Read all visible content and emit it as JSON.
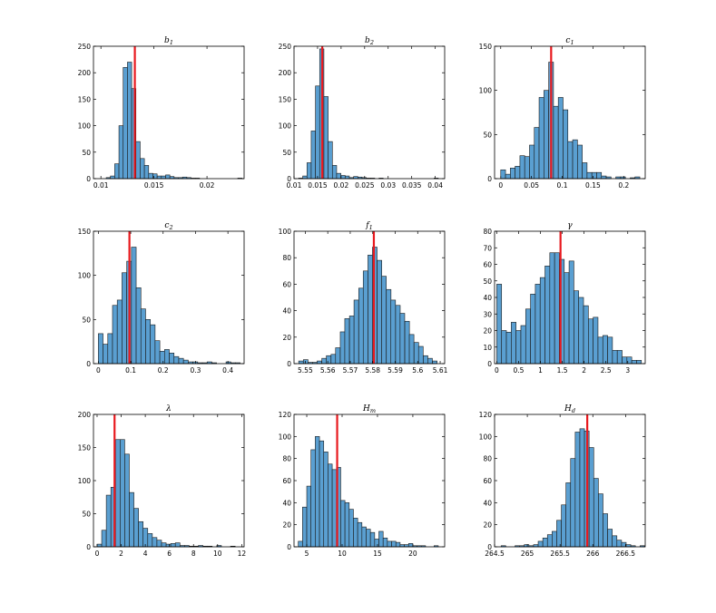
{
  "colors": {
    "bar_fill": "#5a9fd1",
    "bar_stroke": "#1a1a1a",
    "marker": "#e8191e",
    "axis": "#000000"
  },
  "chart_data": [
    {
      "type": "bar",
      "title": "b₁",
      "xlim": [
        0.0093,
        0.0235
      ],
      "ylim": [
        0,
        250
      ],
      "xticks": [
        0.01,
        0.015,
        0.02
      ],
      "xtick_labels": [
        "0.01",
        "0.015",
        "0.02"
      ],
      "yticks": [
        0,
        50,
        100,
        150,
        200,
        250
      ],
      "ytick_labels": [
        "0",
        "50",
        "100",
        "150",
        "200",
        "250"
      ],
      "bin_width": 0.0004,
      "bin_centers": [
        0.0107,
        0.0111,
        0.0115,
        0.0119,
        0.0123,
        0.0127,
        0.0131,
        0.0135,
        0.0139,
        0.0143,
        0.0147,
        0.0151,
        0.0155,
        0.0159,
        0.0163,
        0.0167,
        0.0171,
        0.0175,
        0.0179,
        0.0183,
        0.0187,
        0.0191,
        0.0195,
        0.0199,
        0.0203,
        0.0207,
        0.0211,
        0.0215,
        0.0219,
        0.0223,
        0.0227,
        0.0231
      ],
      "values": [
        2,
        5,
        28,
        100,
        210,
        220,
        170,
        70,
        38,
        25,
        10,
        9,
        5,
        5,
        7,
        4,
        2,
        2,
        3,
        2,
        1,
        1,
        0,
        0,
        0,
        0,
        0,
        0,
        0,
        0,
        0,
        1
      ],
      "marker_x": 0.0132
    },
    {
      "type": "bar",
      "title": "b₂",
      "xlim": [
        0.01,
        0.042
      ],
      "ylim": [
        0,
        250
      ],
      "xticks": [
        0.01,
        0.015,
        0.02,
        0.025,
        0.03,
        0.035,
        0.04
      ],
      "xtick_labels": [
        "0.01",
        "0.015",
        "0.02",
        "0.025",
        "0.03",
        "0.035",
        "0.04"
      ],
      "yticks": [
        0,
        50,
        100,
        150,
        200,
        250
      ],
      "ytick_labels": [
        "0",
        "50",
        "100",
        "150",
        "200",
        "250"
      ],
      "bin_width": 0.0009,
      "bin_centers": [
        0.0114,
        0.0123,
        0.0132,
        0.0141,
        0.015,
        0.0159,
        0.0168,
        0.0177,
        0.0186,
        0.0195,
        0.0204,
        0.0213,
        0.0222,
        0.0231,
        0.024,
        0.0249,
        0.0258,
        0.0267,
        0.0276,
        0.0285,
        0.0294,
        0.0303,
        0.0312,
        0.0321,
        0.033,
        0.0339,
        0.0348,
        0.0357,
        0.0366,
        0.0375,
        0.0384,
        0.0393,
        0.0402
      ],
      "values": [
        1,
        5,
        30,
        90,
        175,
        245,
        155,
        70,
        25,
        10,
        6,
        5,
        2,
        4,
        3,
        2,
        1,
        1,
        0,
        1,
        0,
        0,
        0,
        0,
        0,
        0,
        0,
        0,
        0,
        0,
        0,
        0,
        1
      ],
      "marker_x": 0.016
    },
    {
      "type": "bar",
      "title": "c₁",
      "xlim": [
        -0.01,
        0.235
      ],
      "ylim": [
        0,
        150
      ],
      "xticks": [
        0,
        0.05,
        0.1,
        0.15,
        0.2
      ],
      "xtick_labels": [
        "0",
        "0.05",
        "0.1",
        "0.15",
        "0.2"
      ],
      "yticks": [
        0,
        50,
        100,
        150
      ],
      "ytick_labels": [
        "0",
        "50",
        "100",
        "150"
      ],
      "bin_width": 0.0078,
      "bin_centers": [
        0.0039,
        0.0117,
        0.0195,
        0.0273,
        0.0351,
        0.0429,
        0.0507,
        0.0585,
        0.0663,
        0.0741,
        0.0819,
        0.0897,
        0.0975,
        0.1053,
        0.1131,
        0.1209,
        0.1287,
        0.1365,
        0.1443,
        0.1521,
        0.1599,
        0.1677,
        0.1755,
        0.1833,
        0.1911,
        0.1989,
        0.2067,
        0.2145,
        0.2223
      ],
      "values": [
        10,
        5,
        12,
        14,
        26,
        25,
        38,
        58,
        92,
        100,
        132,
        82,
        92,
        78,
        42,
        44,
        38,
        18,
        7,
        7,
        7,
        3,
        2,
        0,
        2,
        2,
        0,
        1,
        2
      ],
      "marker_x": 0.082
    },
    {
      "type": "bar",
      "title": "c₂",
      "xlim": [
        -0.015,
        0.45
      ],
      "ylim": [
        0,
        150
      ],
      "xticks": [
        0,
        0.1,
        0.2,
        0.3,
        0.4
      ],
      "xtick_labels": [
        "0",
        "0.1",
        "0.2",
        "0.3",
        "0.4"
      ],
      "yticks": [
        0,
        50,
        100,
        150
      ],
      "ytick_labels": [
        "0",
        "50",
        "100",
        "150"
      ],
      "bin_width": 0.0146,
      "bin_centers": [
        0.0073,
        0.0219,
        0.0365,
        0.0511,
        0.0657,
        0.0803,
        0.0949,
        0.1095,
        0.1241,
        0.1387,
        0.1533,
        0.1679,
        0.1825,
        0.1971,
        0.2117,
        0.2263,
        0.2409,
        0.2555,
        0.2701,
        0.2847,
        0.2993,
        0.3139,
        0.3285,
        0.3431,
        0.3577,
        0.3723,
        0.3869,
        0.4015,
        0.4161,
        0.4307
      ],
      "values": [
        34,
        22,
        34,
        66,
        72,
        103,
        116,
        132,
        86,
        62,
        50,
        44,
        26,
        14,
        16,
        12,
        8,
        6,
        4,
        2,
        2,
        1,
        1,
        2,
        1,
        0,
        0,
        2,
        1,
        1
      ],
      "marker_x": 0.096
    },
    {
      "type": "bar",
      "title": "f₁",
      "xlim": [
        5.545,
        5.612
      ],
      "ylim": [
        0,
        100
      ],
      "xticks": [
        5.55,
        5.56,
        5.57,
        5.58,
        5.59,
        5.6,
        5.61
      ],
      "xtick_labels": [
        "5.55",
        "5.56",
        "5.57",
        "5.58",
        "5.59",
        "5.6",
        "5.61"
      ],
      "yticks": [
        0,
        20,
        40,
        60,
        80,
        100
      ],
      "ytick_labels": [
        "0",
        "20",
        "40",
        "60",
        "80",
        "100"
      ],
      "bin_width": 0.00205,
      "bin_centers": [
        5.5481,
        5.5502,
        5.5522,
        5.5543,
        5.5563,
        5.5584,
        5.5604,
        5.5625,
        5.5645,
        5.5666,
        5.5686,
        5.5707,
        5.5727,
        5.5748,
        5.5768,
        5.5789,
        5.5809,
        5.583,
        5.585,
        5.5871,
        5.5891,
        5.5912,
        5.5932,
        5.5953,
        5.5973,
        5.5994,
        5.6014,
        5.6035,
        5.6055,
        5.6076
      ],
      "values": [
        2,
        3,
        1,
        1,
        2,
        4,
        6,
        7,
        12,
        24,
        34,
        36,
        48,
        57,
        70,
        82,
        88,
        78,
        66,
        56,
        48,
        44,
        38,
        32,
        22,
        16,
        13,
        6,
        4,
        2
      ],
      "marker_x": 5.5805
    },
    {
      "type": "bar",
      "title": "γ",
      "xlim": [
        -0.05,
        3.4
      ],
      "ylim": [
        0,
        80
      ],
      "xticks": [
        0,
        0.5,
        1,
        1.5,
        2,
        2.5,
        3
      ],
      "xtick_labels": [
        "0",
        "0.5",
        "1",
        "1.5",
        "2",
        "2.5",
        "3"
      ],
      "yticks": [
        0,
        10,
        20,
        30,
        40,
        50,
        60,
        70,
        80
      ],
      "ytick_labels": [
        "0",
        "10",
        "20",
        "30",
        "40",
        "50",
        "60",
        "70",
        "80"
      ],
      "bin_width": 0.1104,
      "bin_centers": [
        0.0552,
        0.1656,
        0.276,
        0.3864,
        0.4968,
        0.6072,
        0.7176,
        0.828,
        0.9384,
        1.0488,
        1.1592,
        1.2696,
        1.38,
        1.4904,
        1.6008,
        1.7112,
        1.8216,
        1.932,
        2.0424,
        2.1528,
        2.2632,
        2.3736,
        2.484,
        2.5944,
        2.7048,
        2.8152,
        2.9256,
        3.036,
        3.1464,
        3.2568
      ],
      "values": [
        48,
        20,
        19,
        25,
        20,
        23,
        33,
        42,
        48,
        52,
        59,
        67,
        67,
        63,
        55,
        62,
        44,
        40,
        35,
        27,
        28,
        16,
        17,
        16,
        8,
        8,
        4,
        4,
        2,
        2
      ],
      "marker_x": 1.46
    },
    {
      "type": "bar",
      "title": "λ",
      "xlim": [
        -0.3,
        12.2
      ],
      "ylim": [
        0,
        200
      ],
      "xticks": [
        0,
        2,
        4,
        6,
        8,
        10,
        12
      ],
      "xtick_labels": [
        "0",
        "2",
        "4",
        "6",
        "8",
        "10",
        "12"
      ],
      "yticks": [
        0,
        50,
        100,
        150,
        200
      ],
      "ytick_labels": [
        "0",
        "50",
        "100",
        "150",
        "200"
      ],
      "bin_width": 0.382,
      "bin_centers": [
        0.191,
        0.573,
        0.955,
        1.337,
        1.719,
        2.101,
        2.483,
        2.865,
        3.247,
        3.629,
        4.011,
        4.393,
        4.775,
        5.157,
        5.539,
        5.921,
        6.303,
        6.685,
        7.067,
        7.449,
        7.831,
        8.213,
        8.595,
        8.977,
        9.359,
        9.741,
        10.123,
        10.505,
        10.887,
        11.269
      ],
      "values": [
        4,
        25,
        78,
        90,
        162,
        162,
        140,
        82,
        58,
        38,
        28,
        20,
        14,
        10,
        6,
        4,
        5,
        6,
        2,
        2,
        1,
        1,
        2,
        1,
        1,
        0,
        2,
        0,
        0,
        1
      ],
      "marker_x": 1.45
    },
    {
      "type": "bar",
      "title": "Hₘ",
      "xlim": [
        3.2,
        24.5
      ],
      "ylim": [
        0,
        120
      ],
      "xticks": [
        5,
        10,
        15,
        20
      ],
      "xtick_labels": [
        "5",
        "10",
        "15",
        "20"
      ],
      "yticks": [
        0,
        20,
        40,
        60,
        80,
        100,
        120
      ],
      "ytick_labels": [
        "0",
        "20",
        "40",
        "60",
        "80",
        "100",
        "120"
      ],
      "bin_width": 0.6,
      "bin_centers": [
        4.1,
        4.7,
        5.3,
        5.9,
        6.5,
        7.1,
        7.7,
        8.3,
        8.9,
        9.5,
        10.1,
        10.7,
        11.3,
        11.9,
        12.5,
        13.1,
        13.7,
        14.3,
        14.9,
        15.5,
        16.1,
        16.7,
        17.3,
        17.9,
        18.5,
        19.1,
        19.7,
        20.3,
        20.9,
        21.5,
        22.1,
        22.7,
        23.3
      ],
      "values": [
        5,
        36,
        55,
        88,
        100,
        96,
        86,
        75,
        70,
        72,
        42,
        40,
        34,
        26,
        22,
        18,
        16,
        13,
        7,
        14,
        8,
        5,
        5,
        4,
        2,
        2,
        3,
        1,
        1,
        1,
        0,
        0,
        1
      ],
      "marker_x": 9.3
    },
    {
      "type": "bar",
      "title": "Hd",
      "xlim": [
        264.5,
        266.8
      ],
      "ylim": [
        0,
        120
      ],
      "xticks": [
        264.5,
        265,
        265.5,
        266,
        266.5
      ],
      "xtick_labels": [
        "264.5",
        "265",
        "265.5",
        "266",
        "266.5"
      ],
      "yticks": [
        0,
        20,
        40,
        60,
        80,
        100,
        120
      ],
      "ytick_labels": [
        "0",
        "20",
        "40",
        "60",
        "80",
        "100",
        "120"
      ],
      "bin_width": 0.0707,
      "bin_centers": [
        264.6354,
        264.7061,
        264.7768,
        264.8475,
        264.9182,
        264.9889,
        265.0596,
        265.1303,
        265.201,
        265.2717,
        265.3424,
        265.4131,
        265.4838,
        265.5545,
        265.6252,
        265.6959,
        265.7666,
        265.8373,
        265.908,
        265.9787,
        266.0494,
        266.1201,
        266.1908,
        266.2615,
        266.3322,
        266.4029,
        266.4736,
        266.5443,
        266.615,
        266.6857,
        266.7564
      ],
      "values": [
        1,
        0,
        0,
        1,
        1,
        2,
        1,
        2,
        5,
        8,
        11,
        14,
        24,
        38,
        58,
        80,
        104,
        107,
        105,
        90,
        62,
        48,
        30,
        16,
        10,
        6,
        4,
        2,
        1,
        0,
        1
      ],
      "marker_x": 265.915
    }
  ]
}
